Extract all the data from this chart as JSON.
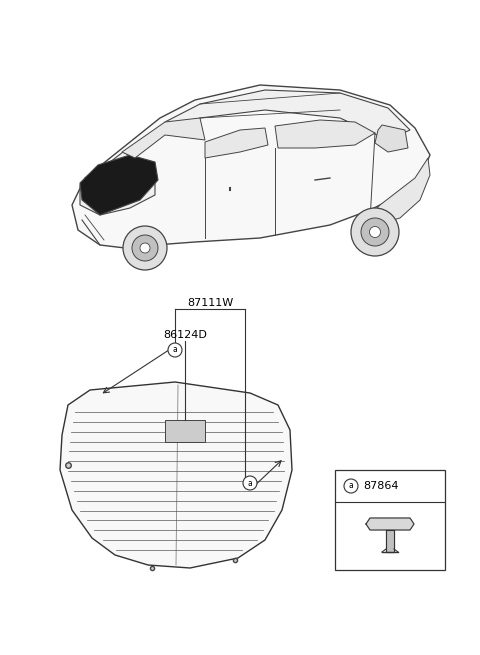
{
  "bg_color": "#ffffff",
  "label_87111W": "87111W",
  "label_86124D": "86124D",
  "label_87864": "87864",
  "label_a": "a",
  "font_color": "#000000",
  "line_color": "#333333",
  "car_line_color": "#444444",
  "glass_line_color": "#444444",
  "dark_fill": "#1a1a1a",
  "light_fill": "#f2f2f2",
  "mid_fill": "#cccccc"
}
